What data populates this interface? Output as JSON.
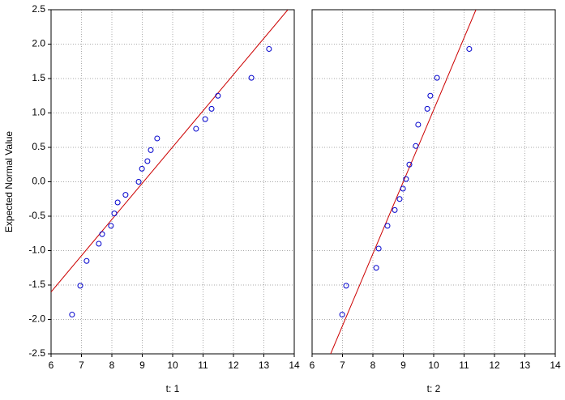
{
  "chart_data": [
    {
      "type": "scatter",
      "xlabel": "t: 1",
      "ylabel": "Expected Normal Value",
      "xlim": [
        6,
        14
      ],
      "ylim": [
        -2.5,
        2.5
      ],
      "xticks": [
        6,
        7,
        8,
        9,
        10,
        11,
        12,
        13,
        14
      ],
      "yticks": [
        2.5,
        {
          "value": 2,
          "label": "2.0"
        },
        1.5,
        {
          "value": 1,
          "label": "1.0"
        },
        0.5,
        {
          "value": 0,
          "label": "0.0"
        },
        -0.5,
        {
          "value": -1,
          "label": "-1.0"
        },
        -1.5,
        {
          "value": -2,
          "label": "-2.0"
        },
        -2.5
      ],
      "grid": true,
      "color": "#0000cc",
      "fit_color": "#cc0000",
      "x": [
        6.69,
        6.96,
        7.17,
        7.57,
        7.68,
        7.97,
        8.08,
        8.19,
        8.45,
        8.88,
        8.99,
        9.17,
        9.28,
        9.49,
        10.77,
        11.07,
        11.28,
        11.49,
        12.59,
        13.17
      ],
      "values": [
        -1.93,
        -1.51,
        -1.15,
        -0.9,
        -0.76,
        -0.64,
        -0.46,
        -0.3,
        -0.19,
        0.0,
        0.19,
        0.3,
        0.46,
        0.63,
        0.77,
        0.91,
        1.06,
        1.25,
        1.51,
        1.93
      ],
      "fit": {
        "x": [
          6,
          13.79
        ],
        "y": [
          -1.6,
          2.5
        ]
      }
    },
    {
      "type": "scatter",
      "xlabel": "t: 2",
      "xlim": [
        6,
        14
      ],
      "ylim": [
        -2.5,
        2.5
      ],
      "xticks": [
        6,
        7,
        8,
        9,
        10,
        11,
        12,
        13,
        14
      ],
      "yticks": [
        2.5,
        2,
        1.5,
        1,
        0.5,
        0,
        -0.5,
        -1,
        -1.5,
        -2,
        -2.5
      ],
      "grid": true,
      "color": "#0000cc",
      "fit_color": "#cc0000",
      "x": [
        6.99,
        7.12,
        8.11,
        8.19,
        8.48,
        8.72,
        8.88,
        8.99,
        9.09,
        9.2,
        9.41,
        9.49,
        9.79,
        9.89,
        10.11,
        11.17
      ],
      "values": [
        -1.93,
        -1.51,
        -1.25,
        -0.97,
        -0.64,
        -0.41,
        -0.25,
        -0.1,
        0.04,
        0.25,
        0.52,
        0.83,
        1.06,
        1.25,
        1.51,
        1.93
      ],
      "fit": {
        "x": [
          6.61,
          11.39
        ],
        "y": [
          -2.5,
          2.5
        ]
      }
    }
  ]
}
